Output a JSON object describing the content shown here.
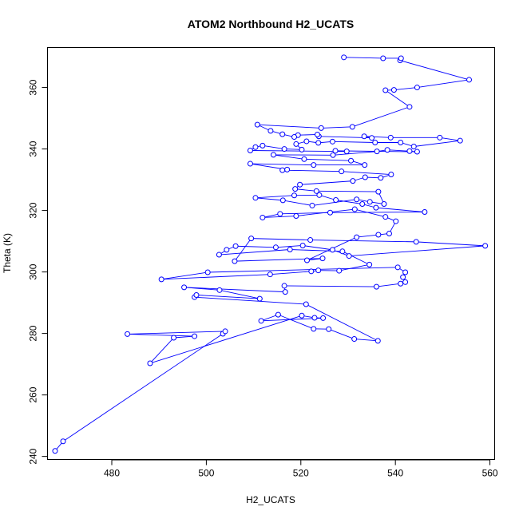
{
  "chart_data": {
    "type": "scatter",
    "title": "ATOM2 Northbound H2_UCATS",
    "xlabel": "H2_UCATS",
    "ylabel": "Theta (K)",
    "xlim": [
      466.4,
      561.0
    ],
    "ylim": [
      239.0,
      373.0
    ],
    "xticks": [
      480,
      500,
      520,
      540,
      560
    ],
    "yticks": [
      240,
      260,
      280,
      300,
      320,
      340,
      360
    ],
    "point_style": "open circle",
    "connected": true,
    "grid": false,
    "legend": "none",
    "color": "#0000ff",
    "points": [
      [
        468.0,
        241.8
      ],
      [
        469.7,
        244.9
      ],
      [
        503.5,
        279.9
      ],
      [
        504.0,
        280.7
      ],
      [
        483.3,
        279.8
      ],
      [
        497.5,
        279.1
      ],
      [
        493.1,
        278.6
      ],
      [
        488.1,
        270.3
      ],
      [
        520.2,
        285.8
      ],
      [
        522.9,
        285.1
      ],
      [
        524.7,
        285.0
      ],
      [
        511.6,
        284.1
      ],
      [
        515.2,
        286.1
      ],
      [
        522.7,
        281.5
      ],
      [
        525.9,
        281.4
      ],
      [
        531.3,
        278.2
      ],
      [
        536.3,
        277.6
      ],
      [
        521.1,
        289.5
      ],
      [
        497.5,
        291.8
      ],
      [
        497.9,
        292.5
      ],
      [
        511.3,
        291.3
      ],
      [
        502.8,
        294.1
      ],
      [
        495.3,
        295.0
      ],
      [
        516.7,
        293.5
      ],
      [
        516.5,
        295.5
      ],
      [
        536.0,
        295.2
      ],
      [
        541.1,
        296.2
      ],
      [
        542.1,
        296.7
      ],
      [
        541.6,
        298.3
      ],
      [
        542.1,
        299.9
      ],
      [
        540.5,
        301.5
      ],
      [
        500.3,
        299.9
      ],
      [
        490.5,
        297.6
      ],
      [
        513.5,
        299.2
      ],
      [
        522.2,
        300.2
      ],
      [
        523.7,
        300.5
      ],
      [
        528.1,
        300.4
      ],
      [
        534.5,
        302.4
      ],
      [
        528.8,
        306.7
      ],
      [
        517.7,
        307.3
      ],
      [
        502.7,
        305.6
      ],
      [
        504.3,
        307.2
      ],
      [
        506.2,
        308.4
      ],
      [
        514.7,
        308.0
      ],
      [
        520.4,
        308.6
      ],
      [
        526.7,
        307.2
      ],
      [
        530.2,
        305.2
      ],
      [
        559.0,
        308.5
      ],
      [
        544.4,
        309.8
      ],
      [
        522.0,
        310.4
      ],
      [
        509.5,
        310.9
      ],
      [
        506.0,
        303.5
      ],
      [
        524.6,
        304.4
      ],
      [
        521.3,
        303.8
      ],
      [
        531.8,
        311.3
      ],
      [
        536.4,
        312.1
      ],
      [
        538.7,
        312.5
      ],
      [
        540.1,
        316.5
      ],
      [
        537.9,
        317.9
      ],
      [
        531.4,
        320.4
      ],
      [
        519.0,
        318.2
      ],
      [
        511.9,
        317.7
      ],
      [
        515.6,
        318.9
      ],
      [
        526.2,
        319.3
      ],
      [
        546.2,
        319.5
      ],
      [
        535.9,
        320.9
      ],
      [
        533.0,
        322.1
      ],
      [
        527.4,
        323.4
      ],
      [
        523.9,
        325.0
      ],
      [
        518.6,
        324.9
      ],
      [
        510.4,
        324.1
      ],
      [
        516.2,
        323.3
      ],
      [
        522.4,
        321.6
      ],
      [
        531.8,
        323.6
      ],
      [
        534.6,
        322.8
      ],
      [
        537.6,
        322.1
      ],
      [
        536.4,
        326.1
      ],
      [
        523.3,
        326.3
      ],
      [
        518.8,
        327.0
      ],
      [
        519.8,
        328.4
      ],
      [
        531.0,
        329.6
      ],
      [
        533.6,
        330.8
      ],
      [
        536.9,
        330.6
      ],
      [
        539.1,
        331.7
      ],
      [
        528.6,
        332.7
      ],
      [
        516.1,
        333.1
      ],
      [
        517.1,
        333.3
      ],
      [
        509.3,
        335.2
      ],
      [
        522.7,
        334.8
      ],
      [
        533.5,
        334.8
      ],
      [
        530.6,
        336.2
      ],
      [
        520.7,
        336.7
      ],
      [
        514.2,
        338.1
      ],
      [
        526.8,
        338.0
      ],
      [
        536.1,
        339.2
      ],
      [
        538.3,
        339.7
      ],
      [
        543.0,
        339.3
      ],
      [
        544.6,
        339.1
      ],
      [
        527.3,
        339.4
      ],
      [
        529.7,
        339.2
      ],
      [
        509.3,
        339.5
      ],
      [
        510.4,
        340.6
      ],
      [
        511.9,
        341.1
      ],
      [
        516.5,
        340.0
      ],
      [
        520.2,
        339.8
      ],
      [
        519.0,
        341.6
      ],
      [
        521.2,
        342.5
      ],
      [
        523.7,
        342.0
      ],
      [
        526.7,
        342.4
      ],
      [
        535.7,
        342.1
      ],
      [
        541.1,
        342.1
      ],
      [
        543.9,
        340.8
      ],
      [
        553.7,
        342.7
      ],
      [
        549.4,
        343.7
      ],
      [
        539.0,
        343.7
      ],
      [
        533.4,
        344.1
      ],
      [
        535.0,
        343.6
      ],
      [
        523.8,
        344.1
      ],
      [
        523.5,
        344.7
      ],
      [
        519.4,
        344.5
      ],
      [
        518.6,
        343.9
      ],
      [
        516.1,
        344.8
      ],
      [
        513.6,
        345.9
      ],
      [
        510.8,
        347.9
      ],
      [
        524.3,
        346.8
      ],
      [
        530.9,
        347.2
      ],
      [
        543.0,
        353.7
      ],
      [
        537.9,
        359.1
      ],
      [
        539.7,
        359.2
      ],
      [
        544.6,
        360.0
      ],
      [
        555.6,
        362.5
      ],
      [
        541.0,
        368.8
      ],
      [
        541.2,
        369.5
      ],
      [
        537.4,
        369.5
      ],
      [
        529.1,
        369.8
      ]
    ]
  }
}
